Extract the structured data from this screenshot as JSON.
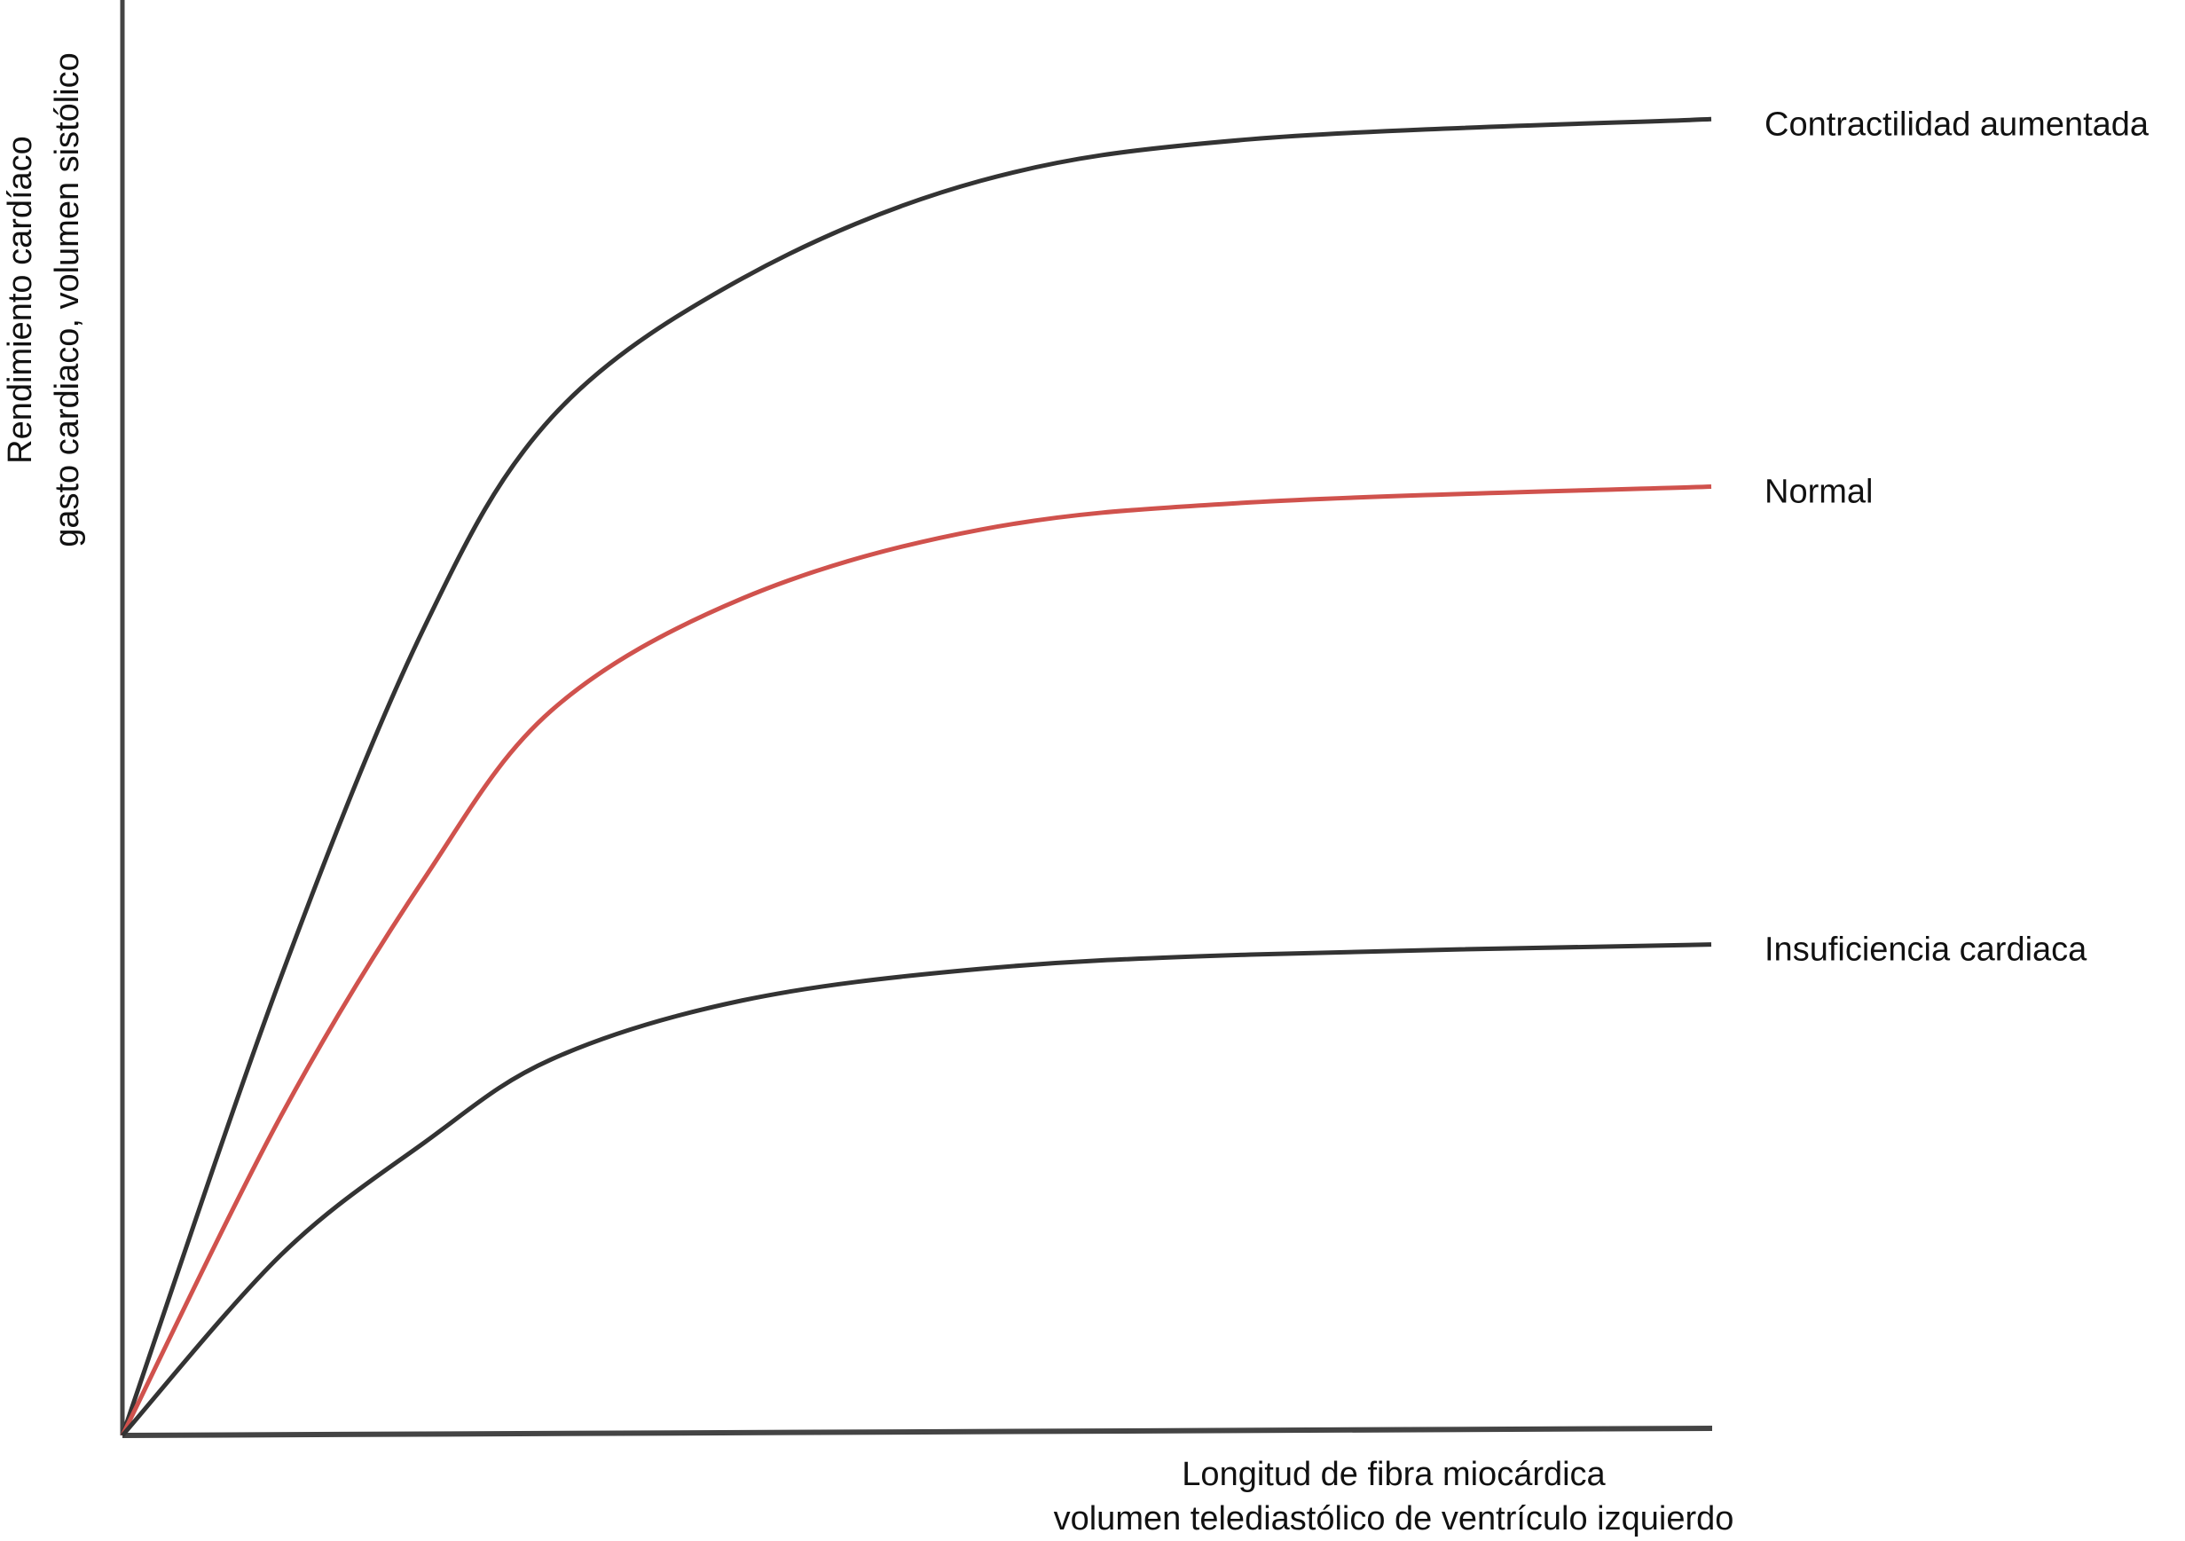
{
  "chart_data": {
    "type": "line",
    "x_label": [
      "Longitud de fibra miocárdica",
      "volumen telediastólico de ventrículo izquierdo"
    ],
    "y_label": [
      "Rendimiento cardíaco",
      "gasto cardiaco, volumen sistólico"
    ],
    "x": [
      0,
      10,
      19,
      27,
      39,
      54,
      71,
      100
    ],
    "xlim": [
      0,
      100
    ],
    "ylim": [
      0,
      100
    ],
    "series": [
      {
        "name": "Contractilidad aumentada",
        "color": "#333333",
        "values": [
          0,
          32.0,
          56.3,
          70.9,
          80.6,
          87.4,
          90.3,
          91.7
        ]
      },
      {
        "name": "Normal",
        "color": "#d0524d",
        "values": [
          0,
          22.3,
          38.8,
          50.5,
          58.3,
          63.1,
          65.0,
          66.1
        ]
      },
      {
        "name": "Insuficiencia cardiaca",
        "color": "#333333",
        "values": [
          0,
          12.6,
          20.4,
          26.2,
          30.3,
          32.5,
          33.5,
          34.2
        ]
      }
    ]
  }
}
